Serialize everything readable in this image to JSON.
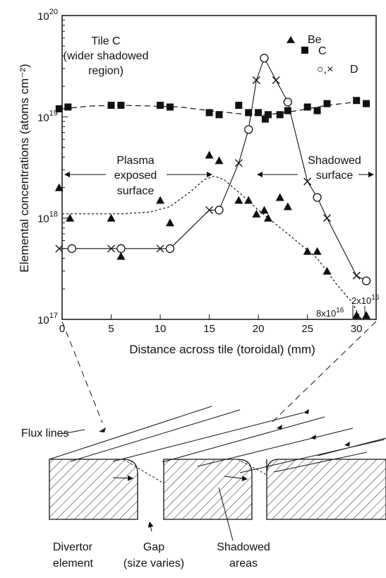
{
  "chart_data": {
    "type": "scatter",
    "title": "",
    "xlabel": "Distance across tile (toroidal) (mm)",
    "ylabel": "Elemental concentrations (atoms cm⁻²)",
    "xlim": [
      0,
      32
    ],
    "ylim": [
      1e+17,
      1e+20
    ],
    "yscale": "log",
    "xticks": [
      0,
      5,
      10,
      15,
      20,
      25,
      30
    ],
    "yticks": [
      {
        "base": "10",
        "exp": "17",
        "value": 1e+17
      },
      {
        "base": "10",
        "exp": "18",
        "value": 1e+18
      },
      {
        "base": "10",
        "exp": "19",
        "value": 1e+19
      },
      {
        "base": "10",
        "exp": "20",
        "value": 1e+20
      }
    ],
    "legend": {
      "placement": "top-right",
      "entries": [
        {
          "symbol": "triangle",
          "label": "Be"
        },
        {
          "symbol": "square",
          "label": "C"
        },
        {
          "symbol": "circle-cross",
          "label": "D",
          "prefix": "○,×"
        }
      ]
    },
    "series": [
      {
        "name": "Be",
        "marker": "triangle",
        "x": [
          -0.3,
          0.8,
          5,
          6,
          10,
          11,
          15,
          16,
          18,
          19,
          19.8,
          20.6,
          21,
          22.2,
          23,
          25,
          26,
          27,
          30,
          31
        ],
        "y": [
          2e+18,
          1e+18,
          1e+18,
          4.2e+17,
          1.5e+18,
          9e+17,
          4.2e+18,
          3.7e+18,
          1.5e+18,
          1.5e+18,
          1.1e+18,
          1.2e+18,
          1e+18,
          1.6e+18,
          1.3e+18,
          4.7e+17,
          4.7e+17,
          3e+17,
          1.1e+17,
          1.1e+17
        ]
      },
      {
        "name": "C",
        "marker": "square",
        "x": [
          -0.3,
          0.6,
          5,
          6,
          10,
          11,
          15,
          16,
          18,
          19,
          20,
          20.7,
          21,
          22.2,
          23,
          25,
          26,
          27,
          30,
          31
        ],
        "y": [
          1.2e+19,
          1.25e+19,
          1.3e+19,
          1.3e+19,
          1.3e+19,
          1.25e+19,
          1.1e+19,
          1.05e+19,
          1.3e+19,
          1.1e+19,
          1.1e+19,
          9.5e+18,
          1.05e+19,
          1.05e+19,
          1.15e+19,
          1.25e+19,
          1.15e+19,
          1.35e+19,
          1.45e+19,
          1.35e+19
        ]
      },
      {
        "name": "D (○)",
        "marker": "circle",
        "x": [
          1,
          6,
          11,
          16,
          19,
          20.6,
          23,
          26,
          31
        ],
        "y": [
          5e+17,
          5e+17,
          5e+17,
          1.2e+18,
          7.5e+18,
          3.8e+19,
          1.4e+19,
          1.6e+18,
          2.4e+17
        ]
      },
      {
        "name": "D (×)",
        "marker": "cross",
        "x": [
          -0.3,
          5,
          10,
          15,
          18,
          19.8,
          21.8,
          25,
          27,
          30
        ],
        "y": [
          5e+17,
          5e+17,
          5e+17,
          1.2e+18,
          3.5e+18,
          2.3e+19,
          2.3e+19,
          2.3e+18,
          1e+18,
          2.7e+17
        ]
      }
    ],
    "fits": [
      {
        "style": "dashed-long",
        "x": [
          0,
          3,
          6,
          9,
          12,
          15,
          17,
          19,
          21,
          24,
          27,
          30,
          31
        ],
        "y": [
          1.2e+19,
          1.28e+19,
          1.3e+19,
          1.28e+19,
          1.25e+19,
          1.15e+19,
          1.1e+19,
          1.05e+19,
          1.05e+19,
          1.15e+19,
          1.3e+19,
          1.4e+19,
          1.38e+19
        ]
      },
      {
        "style": "dashed-short",
        "x": [
          0,
          3,
          6,
          9,
          11,
          13,
          14.5,
          15.5,
          16.5,
          18,
          20,
          23,
          26,
          28,
          29.5,
          30.5
        ],
        "y": [
          1.1e+18,
          1.1e+18,
          1.1e+18,
          1.15e+18,
          1.3e+18,
          1.8e+18,
          2.4e+18,
          2.6e+18,
          2.4e+18,
          1.8e+18,
          1.2e+18,
          7e+17,
          4e+17,
          2.2e+17,
          1.5e+17,
          1e+17
        ]
      }
    ],
    "annotations": {
      "tile": [
        "Tile C",
        "(wider shadowed",
        "region)"
      ],
      "plasma": [
        "Plasma",
        "exposed",
        "surface"
      ],
      "shadowed": [
        "Shadowed",
        "surface"
      ],
      "low1": {
        "mant": "8x10",
        "exp": "16"
      },
      "low2": {
        "mant": "2x10",
        "exp": "16"
      }
    }
  },
  "diagram": {
    "flux_lines": "Flux lines",
    "divertor": [
      "Divertor",
      "element"
    ],
    "gap": [
      "Gap",
      "(size varies)"
    ],
    "shadowed": [
      "Shadowed",
      "areas"
    ]
  }
}
